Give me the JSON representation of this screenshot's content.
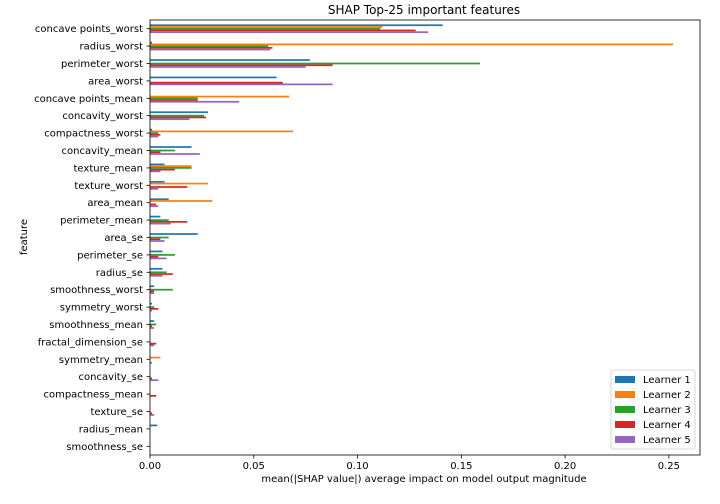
{
  "chart_data": {
    "type": "bar",
    "orientation": "horizontal",
    "title": "SHAP Top-25 important features",
    "xlabel": "mean(|SHAP value|) average impact on model output magnitude",
    "ylabel": "feature",
    "xlim": [
      0,
      0.265
    ],
    "xticks": [
      0.0,
      0.05,
      0.1,
      0.15,
      0.2,
      0.25
    ],
    "xtick_labels": [
      "0.00",
      "0.05",
      "0.10",
      "0.15",
      "0.20",
      "0.25"
    ],
    "grid": false,
    "legend_position": "bottom-right",
    "categories": [
      "concave points_worst",
      "radius_worst",
      "perimeter_worst",
      "area_worst",
      "concave points_mean",
      "concavity_worst",
      "compactness_worst",
      "concavity_mean",
      "texture_mean",
      "texture_worst",
      "area_mean",
      "perimeter_mean",
      "area_se",
      "perimeter_se",
      "radius_se",
      "smoothness_worst",
      "symmetry_worst",
      "smoothness_mean",
      "fractal_dimension_se",
      "symmetry_mean",
      "concavity_se",
      "compactness_mean",
      "texture_se",
      "radius_mean",
      "smoothness_se"
    ],
    "series": [
      {
        "name": "Learner 1",
        "color": "#1f77b4",
        "values": [
          0.141,
          0.001,
          0.077,
          0.061,
          0.0,
          0.028,
          0.001,
          0.02,
          0.007,
          0.007,
          0.009,
          0.005,
          0.023,
          0.006,
          0.006,
          0.002,
          0.001,
          0.002,
          0.0,
          0.0,
          0.0,
          0.0,
          0.0,
          0.0035,
          0.0
        ]
      },
      {
        "name": "Learner 2",
        "color": "#ff7f0e",
        "values": [
          0.112,
          0.252,
          0.0,
          0.0,
          0.067,
          0.0,
          0.069,
          0.0,
          0.02,
          0.028,
          0.03,
          0.0,
          0.0,
          0.0,
          0.0,
          0.0,
          0.0,
          0.0,
          0.0,
          0.005,
          0.0,
          0.0,
          0.0,
          0.0,
          0.0
        ]
      },
      {
        "name": "Learner 3",
        "color": "#2ca02c",
        "values": [
          0.111,
          0.057,
          0.159,
          0.0,
          0.023,
          0.026,
          0.004,
          0.012,
          0.02,
          0.0,
          0.0,
          0.009,
          0.009,
          0.012,
          0.008,
          0.011,
          0.002,
          0.003,
          0.0,
          0.0,
          0.0,
          0.0,
          0.0,
          0.0,
          0.0
        ]
      },
      {
        "name": "Learner 4",
        "color": "#d62728",
        "values": [
          0.128,
          0.059,
          0.088,
          0.064,
          0.023,
          0.027,
          0.005,
          0.005,
          0.012,
          0.018,
          0.003,
          0.018,
          0.005,
          0.004,
          0.011,
          0.002,
          0.004,
          0.001,
          0.003,
          0.0,
          0.001,
          0.003,
          0.001,
          0.0,
          0.0
        ]
      },
      {
        "name": "Learner 5",
        "color": "#9467bd",
        "values": [
          0.134,
          0.058,
          0.075,
          0.088,
          0.043,
          0.019,
          0.004,
          0.024,
          0.005,
          0.004,
          0.004,
          0.01,
          0.007,
          0.008,
          0.006,
          0.002,
          0.001,
          0.002,
          0.002,
          0.001,
          0.004,
          0.0,
          0.002,
          0.0,
          0.0
        ]
      }
    ]
  }
}
